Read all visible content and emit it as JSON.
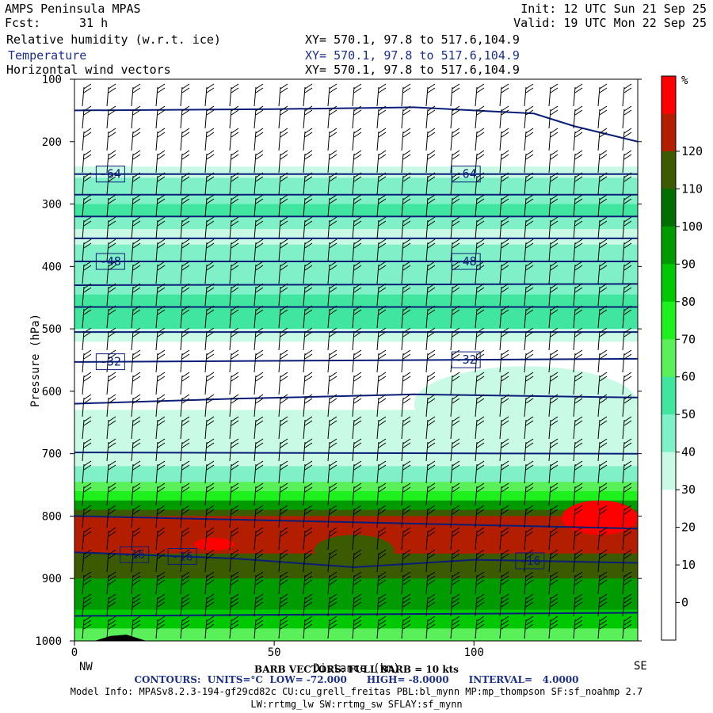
{
  "header": {
    "title": "AMPS Peninsula MPAS",
    "init": "Init: 12 UTC Sun 21 Sep 25",
    "fcst_label": "Fcst:",
    "fcst_value": "31 h",
    "valid": "Valid: 19 UTC Mon 22 Sep 25",
    "fields": [
      {
        "name": "Relative humidity (w.r.t. ice)",
        "xy": "XY= 570.1, 97.8 to 517.6,104.9"
      },
      {
        "name": "Temperature",
        "xy": "XY= 570.1, 97.8 to 517.6,104.9"
      },
      {
        "name": "Horizontal wind vectors",
        "xy": "XY= 570.1, 97.8 to 517.6,104.9"
      }
    ]
  },
  "chart_data": {
    "type": "heatmap",
    "ylabel": "Pressure (hPa)",
    "xlabel": "Distance (km)",
    "y_axis": {
      "ticks": [
        100,
        200,
        300,
        400,
        500,
        600,
        700,
        800,
        900,
        1000
      ],
      "range": [
        100,
        1000
      ],
      "inverted": true
    },
    "x_axis": {
      "ticks": [
        0,
        50,
        100
      ],
      "range": [
        0,
        141
      ]
    },
    "end_labels": {
      "left": "NW",
      "right": "SE"
    },
    "colorbar": {
      "unit": "%",
      "levels": [
        -10,
        0,
        10,
        20,
        30,
        40,
        50,
        60,
        70,
        80,
        90,
        100,
        110,
        120,
        130
      ],
      "tick_labels": [
        "0",
        "10",
        "20",
        "30",
        "40",
        "50",
        "60",
        "70",
        "80",
        "90",
        "100",
        "110",
        "120"
      ],
      "colors": [
        "#ffffff",
        "#ffffff",
        "#ffffff",
        "#ffffff",
        "#c8fae6",
        "#7ff0c8",
        "#40e6a0",
        "#5af05a",
        "#1ef01e",
        "#00c800",
        "#009b00",
        "#006e00",
        "#3c5a00",
        "#b41e00",
        "#ff0000"
      ]
    },
    "rh_bands": [
      {
        "p": [
          240,
          258
        ],
        "rh": 30
      },
      {
        "p": [
          258,
          300
        ],
        "rh": 40
      },
      {
        "p": [
          300,
          320
        ],
        "rh": 50
      },
      {
        "p": [
          320,
          340
        ],
        "rh": 40
      },
      {
        "p": [
          340,
          365
        ],
        "rh": 30
      },
      {
        "p": [
          365,
          420
        ],
        "rh": 40
      },
      {
        "p": [
          420,
          445
        ],
        "rh": 40
      },
      {
        "p": [
          445,
          500
        ],
        "rh": 50
      },
      {
        "p": [
          500,
          520
        ],
        "rh": 30
      },
      {
        "p": [
          630,
          690
        ],
        "rh": 30
      },
      {
        "p": [
          690,
          720
        ],
        "rh": 30
      },
      {
        "p": [
          720,
          745
        ],
        "rh": 40
      },
      {
        "p": [
          745,
          760
        ],
        "rh": 60
      },
      {
        "p": [
          760,
          775
        ],
        "rh": 70
      },
      {
        "p": [
          775,
          790
        ],
        "rh": 90
      },
      {
        "p": [
          790,
          800
        ],
        "rh": 110
      },
      {
        "p": [
          800,
          860
        ],
        "rh": 120
      },
      {
        "p": [
          860,
          900
        ],
        "rh": 110
      },
      {
        "p": [
          900,
          950
        ],
        "rh": 90
      },
      {
        "p": [
          950,
          980
        ],
        "rh": 80
      },
      {
        "p": [
          980,
          1000
        ],
        "rh": 60
      }
    ],
    "rh_patches": [
      {
        "x": [
          60,
          80
        ],
        "p": [
          830,
          880
        ],
        "rh": 110
      },
      {
        "x": [
          122,
          141
        ],
        "p": [
          775,
          830
        ],
        "rh": 130
      },
      {
        "x": [
          30,
          40
        ],
        "p": [
          835,
          855
        ],
        "rh": 130
      },
      {
        "x": [
          85,
          141
        ],
        "p": [
          560,
          680
        ],
        "rh": 30
      }
    ],
    "temperature_contours": {
      "units": "°C",
      "low": -72.0,
      "high": -8.0,
      "interval": 4.0,
      "lines": [
        {
          "label": "",
          "x": [
            0,
            50,
            85,
            115,
            125,
            141
          ],
          "p": [
            150,
            148,
            145,
            155,
            175,
            200
          ]
        },
        {
          "label": "-64",
          "x": [
            0,
            141
          ],
          "p": [
            252,
            252
          ]
        },
        {
          "label": "",
          "x": [
            0,
            141
          ],
          "p": [
            285,
            285
          ]
        },
        {
          "label": "",
          "x": [
            0,
            141
          ],
          "p": [
            320,
            320
          ]
        },
        {
          "label": "",
          "x": [
            0,
            141
          ],
          "p": [
            355,
            355
          ]
        },
        {
          "label": "-48",
          "x": [
            0,
            141
          ],
          "p": [
            392,
            392
          ]
        },
        {
          "label": "",
          "x": [
            0,
            141
          ],
          "p": [
            430,
            428
          ]
        },
        {
          "label": "",
          "x": [
            0,
            141
          ],
          "p": [
            465,
            465
          ]
        },
        {
          "label": "",
          "x": [
            0,
            141
          ],
          "p": [
            505,
            505
          ]
        },
        {
          "label": "-32",
          "x": [
            0,
            141
          ],
          "p": [
            553,
            548
          ]
        },
        {
          "label": "",
          "x": [
            0,
            40,
            85,
            141
          ],
          "p": [
            620,
            612,
            605,
            610
          ]
        },
        {
          "label": "",
          "x": [
            0,
            141
          ],
          "p": [
            698,
            700
          ]
        },
        {
          "label": "",
          "x": [
            0,
            141
          ],
          "p": [
            800,
            820
          ]
        },
        {
          "label": "-16",
          "x": [
            0,
            40,
            70,
            100,
            141
          ],
          "p": [
            858,
            868,
            882,
            870,
            875
          ]
        },
        {
          "label": "",
          "x": [
            0,
            141
          ],
          "p": [
            960,
            955
          ]
        }
      ]
    },
    "barb_note": "BARB VECTORS: FULL BARB = 10 kts",
    "terrain": {
      "x": [
        5,
        9,
        13,
        18
      ],
      "p": [
        1000,
        992,
        990,
        1000
      ]
    }
  },
  "footer": {
    "contours": "CONTOURS:  UNITS=°C  LOW= -72.000      HIGH= -8.0000      INTERVAL=   4.0000",
    "model_info": "Model Info: MPASv8.2.3-194-gf29cd82c CU:cu_grell_freitas PBL:bl_mynn MP:mp_thompson SF:sf_noahmp 2.7",
    "model_info2": "LW:rrtmg_lw SW:rrtmg_sw SFLAY:sf_mynn"
  }
}
